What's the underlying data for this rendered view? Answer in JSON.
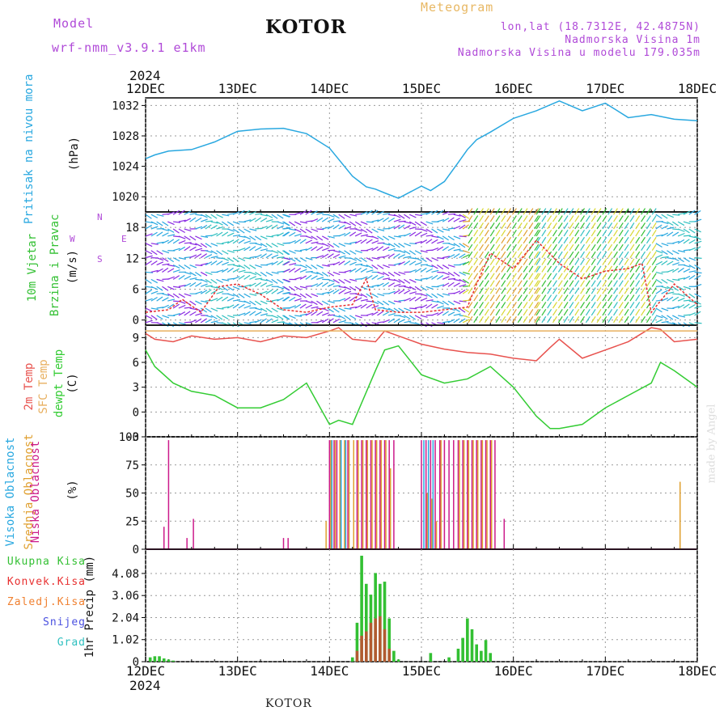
{
  "header": {
    "model_label": "Model",
    "model_name": "wrf-nmm_v3.9.1  e1km",
    "title": "KOTOR",
    "subtitle": "Meteogram",
    "coords": "lon,lat (18.7312E, 42.4875N)",
    "elevation": "Nadmorska Visina 1m",
    "model_elevation": "Nadmorska Visina u modelu 179.035m",
    "year_top": "2024",
    "year_bottom": "2024"
  },
  "footer": {
    "station": "KOTOR",
    "credit": "made by Angel"
  },
  "colors": {
    "pressure": "#29a8e0",
    "temp": "#e8524e",
    "sfc_temp": "#e8b060",
    "dewpt": "#33cc33",
    "high_cloud": "#29a8e0",
    "mid_cloud": "#e0a030",
    "low_cloud": "#cc1a8a",
    "total_precip": "#33c033",
    "convective": "#e83030",
    "frozen": "#f08030",
    "snow": "#4a50e0",
    "graupel": "#30c0c0",
    "wind_label": "#33c033",
    "compass": "#b04ad8"
  },
  "labels": {
    "pressure_title": "Pritisak na nivou mora",
    "pressure_unit": "(hPa)",
    "wind_title1": "10m Vjetar",
    "wind_title2": "Brzina i Pravac",
    "wind_unit": "(m/s)",
    "compass_n": "N",
    "compass_s": "S",
    "compass_e": "E",
    "compass_w": "W",
    "temp_2m": "2m Temp",
    "temp_sfc": "SFC Temp",
    "temp_dew": "dewpt Temp",
    "temp_unit": "(C)",
    "cloud_high": "Visoka Oblacnost",
    "cloud_mid": "Srednja Oblacnost",
    "cloud_low": "Niska Oblacnost",
    "cloud_unit": "(%)",
    "precip_total": "Ukupna Kisa",
    "precip_conv": "Konvek.Kisa",
    "precip_frozen": "Zaledj.Kisa",
    "precip_snow": "Snijeg",
    "precip_graupel": "Grad",
    "precip_unit": "1hr Precip (mm)"
  },
  "chart_data": [
    {
      "type": "line",
      "name": "pressure",
      "x_ticks": [
        "12DEC",
        "13DEC",
        "14DEC",
        "15DEC",
        "16DEC",
        "17DEC",
        "18DEC"
      ],
      "ylim": [
        1018,
        1033
      ],
      "y_ticks": [
        1020,
        1024,
        1028,
        1032
      ],
      "grid": true,
      "x": [
        0,
        0.1,
        0.25,
        0.5,
        0.75,
        1.0,
        1.25,
        1.5,
        1.75,
        2.0,
        2.25,
        2.4,
        2.5,
        2.6,
        2.75,
        3.0,
        3.1,
        3.25,
        3.4,
        3.5,
        3.6,
        3.75,
        4.0,
        4.25,
        4.5,
        4.75,
        5.0,
        5.25,
        5.5,
        5.75,
        6.0
      ],
      "series": [
        {
          "values": [
            1025.0,
            1025.5,
            1026.0,
            1026.2,
            1027.2,
            1028.6,
            1028.9,
            1029.0,
            1028.3,
            1026.4,
            1022.7,
            1021.3,
            1021.0,
            1020.5,
            1019.8,
            1021.4,
            1020.8,
            1022.0,
            1024.5,
            1026.2,
            1027.5,
            1028.5,
            1030.3,
            1031.3,
            1032.6,
            1031.3,
            1032.3,
            1030.4,
            1030.8,
            1030.2,
            1030.0
          ]
        }
      ]
    },
    {
      "type": "line",
      "name": "wind",
      "x_ticks": [
        "12DEC",
        "13DEC",
        "14DEC",
        "15DEC",
        "16DEC",
        "17DEC",
        "18DEC"
      ],
      "ylim": [
        -1,
        21
      ],
      "y_ticks": [
        0,
        6,
        12,
        18
      ],
      "grid": true,
      "x": [
        0,
        0.25,
        0.4,
        0.6,
        0.8,
        1.0,
        1.25,
        1.5,
        1.75,
        2.0,
        2.25,
        2.4,
        2.5,
        2.75,
        3.0,
        3.25,
        3.5,
        3.6,
        3.75,
        4.0,
        4.25,
        4.5,
        4.75,
        5.0,
        5.25,
        5.4,
        5.5,
        5.75,
        6.0
      ],
      "series": [
        {
          "values": [
            1.5,
            2.0,
            4.0,
            1.5,
            6.5,
            7.0,
            5.0,
            2.0,
            1.5,
            2.5,
            3.0,
            8.0,
            2.0,
            1.5,
            1.5,
            2.0,
            2.5,
            7.0,
            13.0,
            10.0,
            15.5,
            11.0,
            8.0,
            9.5,
            10.0,
            11.0,
            1.5,
            7.0,
            3.0
          ]
        }
      ]
    },
    {
      "type": "line",
      "name": "temperature",
      "x_ticks": [
        "12DEC",
        "13DEC",
        "14DEC",
        "15DEC",
        "16DEC",
        "17DEC",
        "18DEC"
      ],
      "ylim": [
        -3,
        10.5
      ],
      "y_ticks": [
        -3,
        0,
        3,
        6,
        9
      ],
      "grid": true,
      "x": [
        0,
        0.1,
        0.3,
        0.5,
        0.75,
        1.0,
        1.25,
        1.5,
        1.75,
        2.0,
        2.1,
        2.25,
        2.5,
        2.6,
        2.75,
        3.0,
        3.25,
        3.5,
        3.75,
        4.0,
        4.25,
        4.4,
        4.5,
        4.75,
        5.0,
        5.25,
        5.5,
        5.6,
        5.75,
        6.0
      ],
      "series": [
        {
          "values": [
            9.5,
            8.8,
            8.5,
            9.2,
            8.8,
            9.0,
            8.5,
            9.2,
            9.0,
            9.8,
            10.2,
            8.8,
            8.5,
            9.8,
            9.2,
            8.2,
            7.6,
            7.2,
            7.0,
            6.5,
            6.2,
            7.8,
            8.8,
            6.5,
            7.5,
            8.5,
            10.2,
            10.0,
            8.5,
            8.8
          ]
        },
        {
          "values": [
            9.8,
            9.8,
            9.8,
            9.8,
            9.8,
            9.8,
            9.8,
            9.8,
            9.8,
            9.8,
            9.8,
            9.8,
            9.8,
            9.8,
            9.8,
            9.8,
            9.8,
            9.8,
            9.8,
            9.8,
            9.8,
            9.8,
            9.8,
            9.8,
            9.8,
            9.8,
            9.8,
            9.8,
            9.8,
            9.8
          ]
        },
        {
          "values": [
            7.5,
            5.5,
            3.5,
            2.5,
            2.0,
            0.5,
            0.5,
            1.5,
            3.5,
            -1.5,
            -1.0,
            -1.5,
            5.0,
            7.5,
            8.0,
            4.5,
            3.5,
            4.0,
            5.5,
            3.0,
            -0.5,
            -2.0,
            -2.0,
            -1.5,
            0.5,
            2.0,
            3.5,
            6.0,
            5.0,
            3.0
          ]
        }
      ]
    },
    {
      "type": "bar",
      "name": "cloudiness",
      "x_ticks": [
        "12DEC",
        "13DEC",
        "14DEC",
        "15DEC",
        "16DEC",
        "17DEC",
        "18DEC"
      ],
      "ylim": [
        0,
        100
      ],
      "y_ticks": [
        0,
        25,
        50,
        75,
        100
      ],
      "grid": true,
      "series": [
        {
          "x": [
            0.2,
            0.25,
            0.45,
            0.52,
            1.5,
            1.55,
            2.0,
            2.05,
            2.08,
            2.12,
            2.2,
            2.3,
            2.35,
            2.4,
            2.45,
            2.5,
            2.55,
            2.6,
            2.65,
            2.7,
            3.0,
            3.05,
            3.1,
            3.15,
            3.2,
            3.25,
            3.3,
            3.35,
            3.4,
            3.45,
            3.5,
            3.55,
            3.6,
            3.65,
            3.7,
            3.75,
            3.8,
            3.9
          ],
          "values": [
            20,
            97,
            10,
            27,
            10,
            10,
            97,
            97,
            97,
            97,
            97,
            97,
            97,
            97,
            97,
            97,
            97,
            97,
            97,
            97,
            97,
            97,
            97,
            97,
            97,
            97,
            97,
            97,
            97,
            97,
            97,
            97,
            97,
            97,
            97,
            97,
            97,
            27
          ]
        },
        {
          "x": [
            1.95,
            2.0,
            2.05,
            2.1,
            2.15,
            2.2,
            2.25,
            2.3,
            2.35,
            2.4,
            2.45,
            2.5,
            2.55,
            2.6,
            2.65,
            3.05,
            3.1,
            3.15,
            3.2,
            3.4,
            3.45,
            3.5,
            3.55,
            3.6,
            3.65,
            3.7,
            3.75,
            5.8
          ],
          "values": [
            25,
            97,
            97,
            97,
            97,
            97,
            97,
            97,
            97,
            97,
            97,
            97,
            97,
            97,
            72,
            50,
            45,
            25,
            97,
            97,
            97,
            97,
            97,
            97,
            97,
            97,
            97,
            60
          ]
        },
        {
          "x": [
            2.0,
            2.1,
            2.15,
            3.0,
            3.05,
            3.1
          ],
          "values": [
            97,
            97,
            97,
            97,
            97,
            97
          ]
        }
      ]
    },
    {
      "type": "bar",
      "name": "precipitation",
      "x_ticks": [
        "12DEC",
        "13DEC",
        "14DEC",
        "15DEC",
        "16DEC",
        "17DEC",
        "18DEC"
      ],
      "ylim": [
        0,
        5.2
      ],
      "y_ticks": [
        0,
        1.02,
        2.04,
        3.06,
        4.08
      ],
      "grid": true,
      "x": [
        0.05,
        0.1,
        0.15,
        0.2,
        0.25,
        0.3,
        2.25,
        2.3,
        2.35,
        2.4,
        2.45,
        2.5,
        2.55,
        2.6,
        2.65,
        2.7,
        2.75,
        3.1,
        3.3,
        3.4,
        3.45,
        3.5,
        3.55,
        3.6,
        3.65,
        3.7,
        3.75
      ],
      "series": [
        {
          "name": "Ukupna Kisa",
          "values": [
            0.2,
            0.25,
            0.25,
            0.15,
            0.1,
            0.05,
            0.2,
            1.8,
            4.9,
            3.6,
            3.1,
            4.1,
            3.6,
            3.7,
            2.0,
            0.5,
            0.1,
            0.4,
            0.2,
            0.6,
            1.1,
            2.0,
            1.5,
            0.8,
            0.5,
            1.0,
            0.4
          ]
        },
        {
          "name": "Konvek.Kisa",
          "values": [
            0,
            0,
            0,
            0,
            0,
            0,
            0,
            0.5,
            1.2,
            1.4,
            1.8,
            2.0,
            2.1,
            1.5,
            0.6,
            0,
            0,
            0,
            0,
            0,
            0,
            0,
            0,
            0,
            0,
            0,
            0
          ]
        },
        {
          "name": "Zaledj.Kisa",
          "values": [
            0,
            0,
            0,
            0,
            0,
            0,
            0,
            0,
            0,
            0,
            0,
            0,
            0,
            0,
            0,
            0,
            0,
            0,
            0,
            0,
            0,
            0,
            0,
            0,
            0,
            0,
            0
          ]
        },
        {
          "name": "Snijeg",
          "values": [
            0,
            0,
            0,
            0,
            0,
            0,
            0,
            0,
            0,
            0,
            0,
            0,
            0,
            0,
            0,
            0,
            0,
            0,
            0,
            0,
            0,
            0,
            0,
            0,
            0,
            0,
            0
          ]
        },
        {
          "name": "Grad",
          "values": [
            0,
            0,
            0,
            0,
            0,
            0,
            0,
            0,
            0,
            0,
            0,
            0,
            0,
            0,
            0,
            0,
            0,
            0,
            0,
            0,
            0,
            0,
            0,
            0,
            0,
            0,
            0
          ]
        }
      ]
    }
  ]
}
